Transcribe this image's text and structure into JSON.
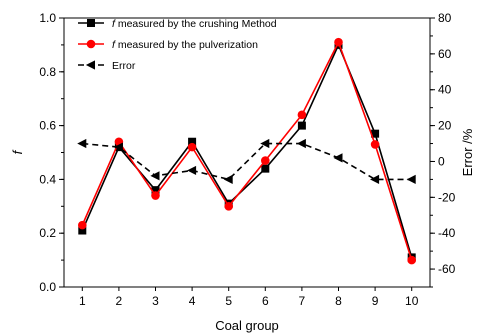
{
  "chart_data": {
    "type": "line",
    "xlabel": "Coal group",
    "ylabel_left": "f",
    "ylabel_right": "Error /%",
    "x": [
      1,
      2,
      3,
      4,
      5,
      6,
      7,
      8,
      9,
      10
    ],
    "xlim": [
      0.5,
      10.5
    ],
    "ylim_left": [
      0.0,
      1.0
    ],
    "ylim_right": [
      -70,
      80
    ],
    "x_ticks": [
      "1",
      "2",
      "3",
      "4",
      "5",
      "6",
      "7",
      "8",
      "9",
      "10"
    ],
    "y_left_ticks": [
      "0.0",
      "0.2",
      "0.4",
      "0.6",
      "0.8",
      "1.0"
    ],
    "y_right_ticks": [
      "-60",
      "-40",
      "-20",
      "0",
      "20",
      "40",
      "60",
      "80"
    ],
    "grid": false,
    "legend_position": "top-left",
    "series": [
      {
        "name_italic": "f",
        "name_rest": " measured by the crushing Method",
        "axis": "left",
        "color": "#000000",
        "marker": "square",
        "line_style": "solid",
        "values": [
          0.21,
          0.52,
          0.36,
          0.54,
          0.31,
          0.44,
          0.6,
          0.9,
          0.57,
          0.11
        ]
      },
      {
        "name_italic": "f",
        "name_rest": " measured by the pulverization",
        "axis": "left",
        "color": "#ff0000",
        "marker": "circle",
        "line_style": "solid",
        "values": [
          0.23,
          0.54,
          0.34,
          0.52,
          0.3,
          0.47,
          0.64,
          0.91,
          0.53,
          0.1
        ]
      },
      {
        "name_italic": "",
        "name_rest": "Error",
        "axis": "right",
        "color": "#000000",
        "marker": "left-triangle",
        "line_style": "dashed",
        "values": [
          10,
          8,
          -8,
          -5,
          -10,
          10,
          10,
          2,
          -10,
          -10
        ]
      }
    ]
  }
}
